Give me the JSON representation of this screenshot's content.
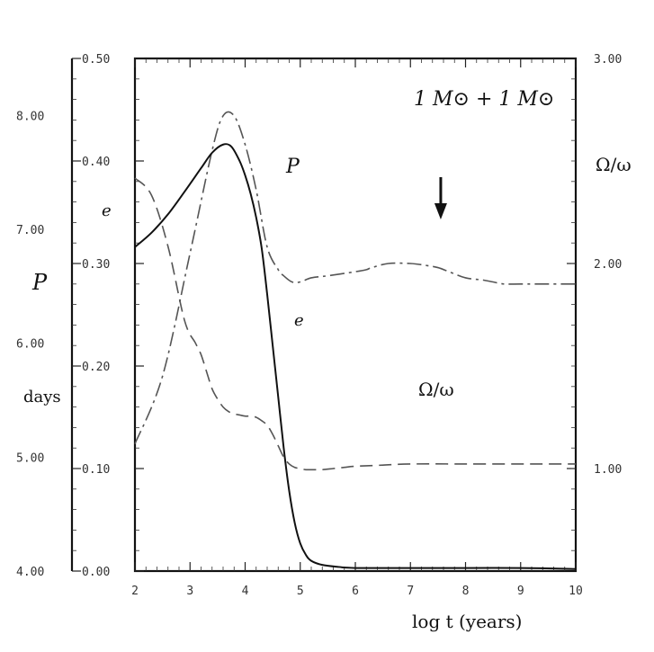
{
  "chart_data": {
    "type": "line",
    "title": "",
    "annotation": "1 M⊙ + 1 M⊙",
    "xlabel": "log t  (years)",
    "xlim": [
      2,
      10
    ],
    "xticks": [
      "2",
      "3",
      "4",
      "5",
      "6",
      "7",
      "8",
      "9",
      "10"
    ],
    "axes": {
      "P": {
        "label": "P",
        "unit": "days",
        "lim": [
          4,
          8.5
        ],
        "ticks": [
          "4.00",
          "5.00",
          "6.00",
          "7.00",
          "8.00"
        ]
      },
      "e": {
        "label": "e",
        "lim": [
          0,
          0.5
        ],
        "ticks": [
          "0.00",
          "0.10",
          "0.20",
          "0.30",
          "0.40",
          "0.50"
        ]
      },
      "omega": {
        "label": "Ω/ω",
        "lim": [
          0.5,
          3
        ],
        "ticks": [
          "1.00",
          "2.00",
          "3.00"
        ]
      }
    },
    "series": [
      {
        "name": "e",
        "axis": "e",
        "style": "solid",
        "x": [
          2.0,
          2.3,
          2.6,
          2.9,
          3.2,
          3.4,
          3.6,
          3.75,
          3.9,
          4.0,
          4.1,
          4.2,
          4.3,
          4.4,
          4.5,
          4.6,
          4.7,
          4.8,
          4.9,
          5.0,
          5.1,
          5.2,
          5.4,
          5.7,
          6.0,
          7.0,
          8.0,
          9.0,
          10.0
        ],
        "y": [
          0.316,
          0.33,
          0.348,
          0.37,
          0.393,
          0.408,
          0.416,
          0.414,
          0.4,
          0.386,
          0.368,
          0.345,
          0.315,
          0.27,
          0.22,
          0.17,
          0.12,
          0.078,
          0.047,
          0.027,
          0.016,
          0.01,
          0.006,
          0.004,
          0.003,
          0.003,
          0.003,
          0.003,
          0.002
        ]
      },
      {
        "name": "P",
        "axis": "P",
        "style": "dash",
        "x": [
          2.0,
          2.3,
          2.6,
          2.9,
          3.1,
          3.2,
          3.3,
          3.4,
          3.5,
          3.6,
          3.7,
          3.8,
          3.9,
          4.0,
          4.1,
          4.2,
          4.3,
          4.4,
          4.5,
          4.6,
          4.7,
          4.8,
          4.9,
          5.0,
          5.1,
          5.2,
          5.4,
          5.6,
          5.8,
          6.0,
          6.5,
          7.0,
          8.0,
          9.0,
          9.5,
          10.0
        ],
        "y": [
          7.45,
          7.3,
          6.85,
          6.2,
          6.0,
          5.9,
          5.75,
          5.6,
          5.51,
          5.44,
          5.4,
          5.38,
          5.37,
          5.36,
          5.36,
          5.35,
          5.32,
          5.28,
          5.2,
          5.1,
          5.0,
          4.94,
          4.91,
          4.9,
          4.89,
          4.89,
          4.89,
          4.9,
          4.91,
          4.92,
          4.93,
          4.94,
          4.94,
          4.94,
          4.94,
          4.94
        ]
      },
      {
        "name": "Ω/ω",
        "axis": "omega",
        "style": "dashdot",
        "x": [
          2.0,
          2.5,
          3.0,
          3.4,
          3.6,
          3.8,
          4.0,
          4.2,
          4.4,
          4.6,
          4.7,
          4.85,
          5.0,
          5.2,
          5.5,
          6.0,
          6.2,
          6.3,
          6.6,
          7.0,
          7.3,
          7.5,
          7.7,
          8.0,
          8.3,
          8.5,
          8.7,
          9.0,
          9.5,
          10.0
        ],
        "y": [
          1.12,
          1.45,
          2.05,
          2.55,
          2.72,
          2.72,
          2.58,
          2.36,
          2.08,
          1.97,
          1.94,
          1.91,
          1.91,
          1.93,
          1.94,
          1.96,
          1.97,
          1.98,
          2.0,
          2.0,
          1.99,
          1.98,
          1.96,
          1.93,
          1.92,
          1.91,
          1.9,
          1.9,
          1.9,
          1.9
        ]
      }
    ],
    "series_labels": [
      {
        "text": "P",
        "italic": true
      },
      {
        "text": "e",
        "italic": true
      },
      {
        "text": "e",
        "italic": true
      },
      {
        "text": "Ω/ω",
        "italic": false
      },
      {
        "text": "Ω/ω",
        "italic": false
      }
    ],
    "marker": {
      "type": "arrow-down",
      "x": 7.55
    }
  }
}
